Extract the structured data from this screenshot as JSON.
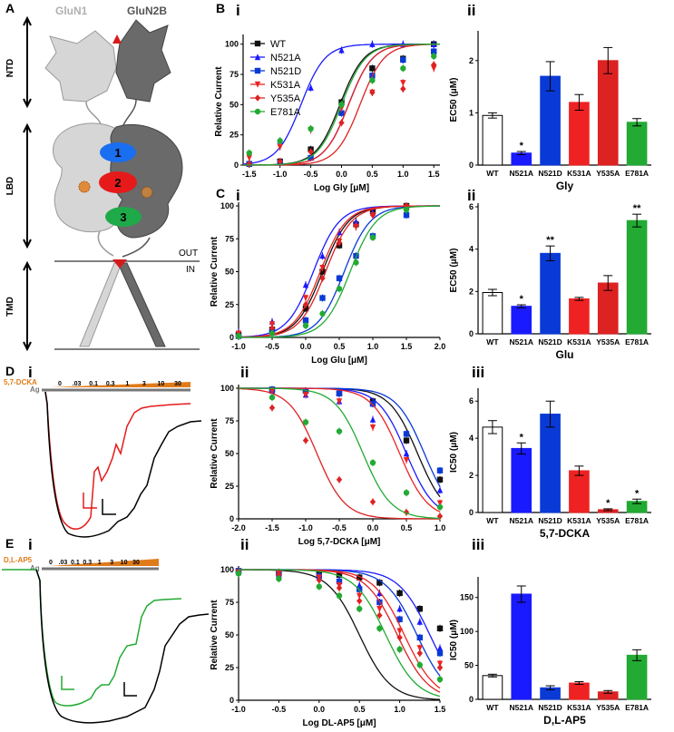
{
  "colors": {
    "WT": "#111111",
    "N521A": "#1a1aff",
    "N521D": "#0a3ad6",
    "K531A": "#ee2222",
    "Y535A": "#dd2222",
    "E781A": "#22aa33",
    "agonist_bar": "#777777",
    "antagonist_bar": "#e07b1a",
    "receptor_light": "#d6d6d6",
    "receptor_dark": "#6a6a6a"
  },
  "panel_letters": {
    "A": "A",
    "B": "B",
    "C": "C",
    "D": "D",
    "E": "E",
    "i": "i",
    "ii": "ii",
    "iii": "iii"
  },
  "schematic": {
    "subunit1": "GluN1",
    "subunit2": "GluN2B",
    "domain_ntd": "NTD",
    "domain_lbd": "LBD",
    "domain_tmd": "TMD",
    "site1": "1",
    "site2": "2",
    "site3": "3",
    "out_label": "OUT",
    "in_label": "IN"
  },
  "traces": {
    "D": {
      "antagonist_label": "5,7-DCKA",
      "agonist_label": "Ag",
      "concentrations": [
        "0",
        ".03",
        "0.1",
        "0.3",
        "1",
        "3",
        "10",
        "30"
      ]
    },
    "E": {
      "antagonist_label": "D,L-AP5",
      "agonist_label": "Ag",
      "concentrations": [
        "0",
        ".03",
        "0.1",
        "0.3",
        "1",
        "3",
        "10",
        "30"
      ]
    }
  },
  "chart_data": [
    {
      "id": "B-i",
      "type": "line",
      "xlabel": "Log Gly [μM]",
      "ylabel": "Relative Current",
      "xlim": [
        -1.6,
        1.6
      ],
      "ylim": [
        0,
        105
      ],
      "xticks": [
        "-1.5",
        "-1.0",
        "-0.5",
        "0.0",
        "0.5",
        "1.0",
        "1.5"
      ],
      "yticks": [
        "0",
        "25",
        "50",
        "75",
        "100"
      ],
      "legend": [
        "WT",
        "N521A",
        "N521D",
        "K531A",
        "Y535A",
        "E781A"
      ],
      "x": [
        -1.5,
        -1.0,
        -0.5,
        0.0,
        0.5,
        1.0,
        1.5
      ],
      "series": [
        {
          "name": "WT",
          "values": [
            1,
            3,
            13,
            52,
            80,
            88,
            100
          ]
        },
        {
          "name": "N521A",
          "values": [
            2,
            20,
            64,
            95,
            100,
            100,
            100
          ]
        },
        {
          "name": "N521D",
          "values": [
            1,
            2,
            6,
            43,
            74,
            87,
            94
          ]
        },
        {
          "name": "K531A",
          "values": [
            6,
            15,
            29,
            47,
            60,
            68,
            80
          ]
        },
        {
          "name": "Y535A",
          "values": [
            1,
            3,
            11,
            35,
            60,
            63,
            83
          ]
        },
        {
          "name": "E781A",
          "values": [
            10,
            20,
            30,
            50,
            70,
            80,
            90
          ]
        }
      ]
    },
    {
      "id": "B-ii",
      "type": "bar",
      "xlabel": "Gly",
      "ylabel": "EC50 (μM)",
      "ylim": [
        0,
        2.5
      ],
      "yticks": [
        "0",
        "1",
        "2"
      ],
      "categories": [
        "WT",
        "N521A",
        "N521D",
        "K531A",
        "Y535A",
        "E781A"
      ],
      "values": [
        0.95,
        0.23,
        1.7,
        1.2,
        2.0,
        0.82
      ],
      "errors": [
        0.05,
        0.03,
        0.28,
        0.15,
        0.25,
        0.07
      ],
      "significance": [
        "",
        "*",
        "",
        "",
        "",
        ""
      ]
    },
    {
      "id": "C-i",
      "type": "line",
      "xlabel": "Log Glu [μM]",
      "ylabel": "Relative Current",
      "xlim": [
        -1.0,
        2.0
      ],
      "ylim": [
        0,
        100
      ],
      "xticks": [
        "-1.0",
        "-0.5",
        "0.0",
        "0.5",
        "1.0",
        "1.5",
        "2.0"
      ],
      "yticks": [
        "0",
        "25",
        "50",
        "75",
        "100"
      ],
      "x": [
        -1.0,
        -0.5,
        0.0,
        0.25,
        0.5,
        0.75,
        1.0,
        1.5
      ],
      "series": [
        {
          "name": "WT",
          "values": [
            2,
            6,
            22,
            50,
            70,
            86,
            96,
            100
          ]
        },
        {
          "name": "N521A",
          "values": [
            4,
            12,
            40,
            62,
            80,
            88,
            95,
            100
          ]
        },
        {
          "name": "N521D",
          "values": [
            1,
            5,
            13,
            30,
            45,
            62,
            77,
            93
          ]
        },
        {
          "name": "K531A",
          "values": [
            3,
            10,
            30,
            53,
            73,
            84,
            93,
            99
          ]
        },
        {
          "name": "Y535A",
          "values": [
            2,
            7,
            25,
            45,
            72,
            85,
            93,
            100
          ]
        },
        {
          "name": "E781A",
          "values": [
            1,
            3,
            9,
            18,
            37,
            57,
            76,
            97
          ]
        }
      ]
    },
    {
      "id": "C-ii",
      "type": "bar",
      "xlabel": "Glu",
      "ylabel": "EC50 (μM)",
      "ylim": [
        0,
        6
      ],
      "yticks": [
        "0",
        "2",
        "4",
        "6"
      ],
      "categories": [
        "WT",
        "N521A",
        "N521D",
        "K531A",
        "Y535A",
        "E781A"
      ],
      "values": [
        1.95,
        1.3,
        3.8,
        1.65,
        2.4,
        5.35
      ],
      "errors": [
        0.15,
        0.07,
        0.35,
        0.07,
        0.35,
        0.3
      ],
      "significance": [
        "",
        "*",
        "**",
        "",
        "",
        "**"
      ]
    },
    {
      "id": "D-ii",
      "type": "line",
      "xlabel": "Log 5,7-DCKA [μM]",
      "ylabel": "Relative Current",
      "xlim": [
        -2.0,
        1.0
      ],
      "ylim": [
        0,
        100
      ],
      "xticks": [
        "-2.0",
        "-1.5",
        "-1.0",
        "-0.5",
        "0.0",
        "0.5",
        "1.0"
      ],
      "yticks": [
        "0",
        "25",
        "50",
        "75",
        "100"
      ],
      "x": [
        -1.5,
        -1.0,
        -0.5,
        0.0,
        0.5,
        1.0
      ],
      "series": [
        {
          "name": "WT",
          "values": [
            99,
            98,
            96,
            90,
            60,
            30
          ]
        },
        {
          "name": "N521A",
          "values": [
            98,
            95,
            90,
            76,
            50,
            22
          ]
        },
        {
          "name": "N521D",
          "values": [
            99,
            98,
            96,
            88,
            65,
            37
          ]
        },
        {
          "name": "K531A",
          "values": [
            98,
            95,
            90,
            70,
            45,
            12
          ]
        },
        {
          "name": "Y535A",
          "values": [
            85,
            60,
            30,
            13,
            5,
            2
          ]
        },
        {
          "name": "E781A",
          "values": [
            93,
            74,
            67,
            43,
            20,
            9
          ]
        }
      ]
    },
    {
      "id": "D-iii",
      "type": "bar",
      "xlabel": "5,7-DCKA",
      "ylabel": "IC50 (μM)",
      "ylim": [
        0,
        6.5
      ],
      "yticks": [
        "0",
        "2",
        "4",
        "6"
      ],
      "categories": [
        "WT",
        "N521A",
        "N521D",
        "K531A",
        "Y535A",
        "E781A"
      ],
      "values": [
        4.6,
        3.45,
        5.3,
        2.25,
        0.15,
        0.6
      ],
      "errors": [
        0.35,
        0.3,
        0.7,
        0.25,
        0.05,
        0.12
      ],
      "significance": [
        "",
        "*",
        "",
        "",
        "*",
        "*"
      ]
    },
    {
      "id": "E-ii",
      "type": "line",
      "xlabel": "Log DL-AP5 [μM]",
      "ylabel": "Relative Current",
      "xlim": [
        -1.0,
        1.5
      ],
      "ylim": [
        0,
        100
      ],
      "xticks": [
        "-1.0",
        "-0.5",
        "0.0",
        "0.5",
        "1.0",
        "1.5"
      ],
      "yticks": [
        "0",
        "25",
        "50",
        "75",
        "100"
      ],
      "x": [
        -1.0,
        -0.5,
        0.0,
        0.25,
        0.5,
        0.75,
        1.0,
        1.25,
        1.5
      ],
      "series": [
        {
          "name": "WT",
          "values": [
            99,
            98,
            97,
            96,
            94,
            90,
            82,
            70,
            55
          ]
        },
        {
          "name": "N521A",
          "values": [
            98,
            96,
            95,
            92,
            88,
            82,
            70,
            60,
            40
          ]
        },
        {
          "name": "N521D",
          "values": [
            99,
            97,
            95,
            91,
            85,
            75,
            62,
            48,
            36
          ]
        },
        {
          "name": "K531A",
          "values": [
            98,
            97,
            94,
            88,
            80,
            70,
            53,
            40,
            28
          ]
        },
        {
          "name": "Y535A",
          "values": [
            98,
            96,
            92,
            86,
            76,
            65,
            48,
            36,
            25
          ]
        },
        {
          "name": "E781A",
          "values": [
            97,
            93,
            87,
            80,
            70,
            55,
            39,
            27,
            16
          ]
        }
      ]
    },
    {
      "id": "E-iii",
      "type": "bar",
      "xlabel": "D,L-AP5",
      "ylabel": "IC50 (μM)",
      "ylim": [
        0,
        175
      ],
      "yticks": [
        "0",
        "50",
        "100",
        "150"
      ],
      "categories": [
        "WT",
        "N521A",
        "N521D",
        "K531A",
        "Y535A",
        "E781A"
      ],
      "values": [
        35,
        155,
        17,
        24,
        11,
        65
      ],
      "errors": [
        2,
        12,
        3,
        2,
        2,
        8
      ],
      "significance": [
        "",
        "",
        "",
        "",
        "",
        ""
      ]
    }
  ]
}
